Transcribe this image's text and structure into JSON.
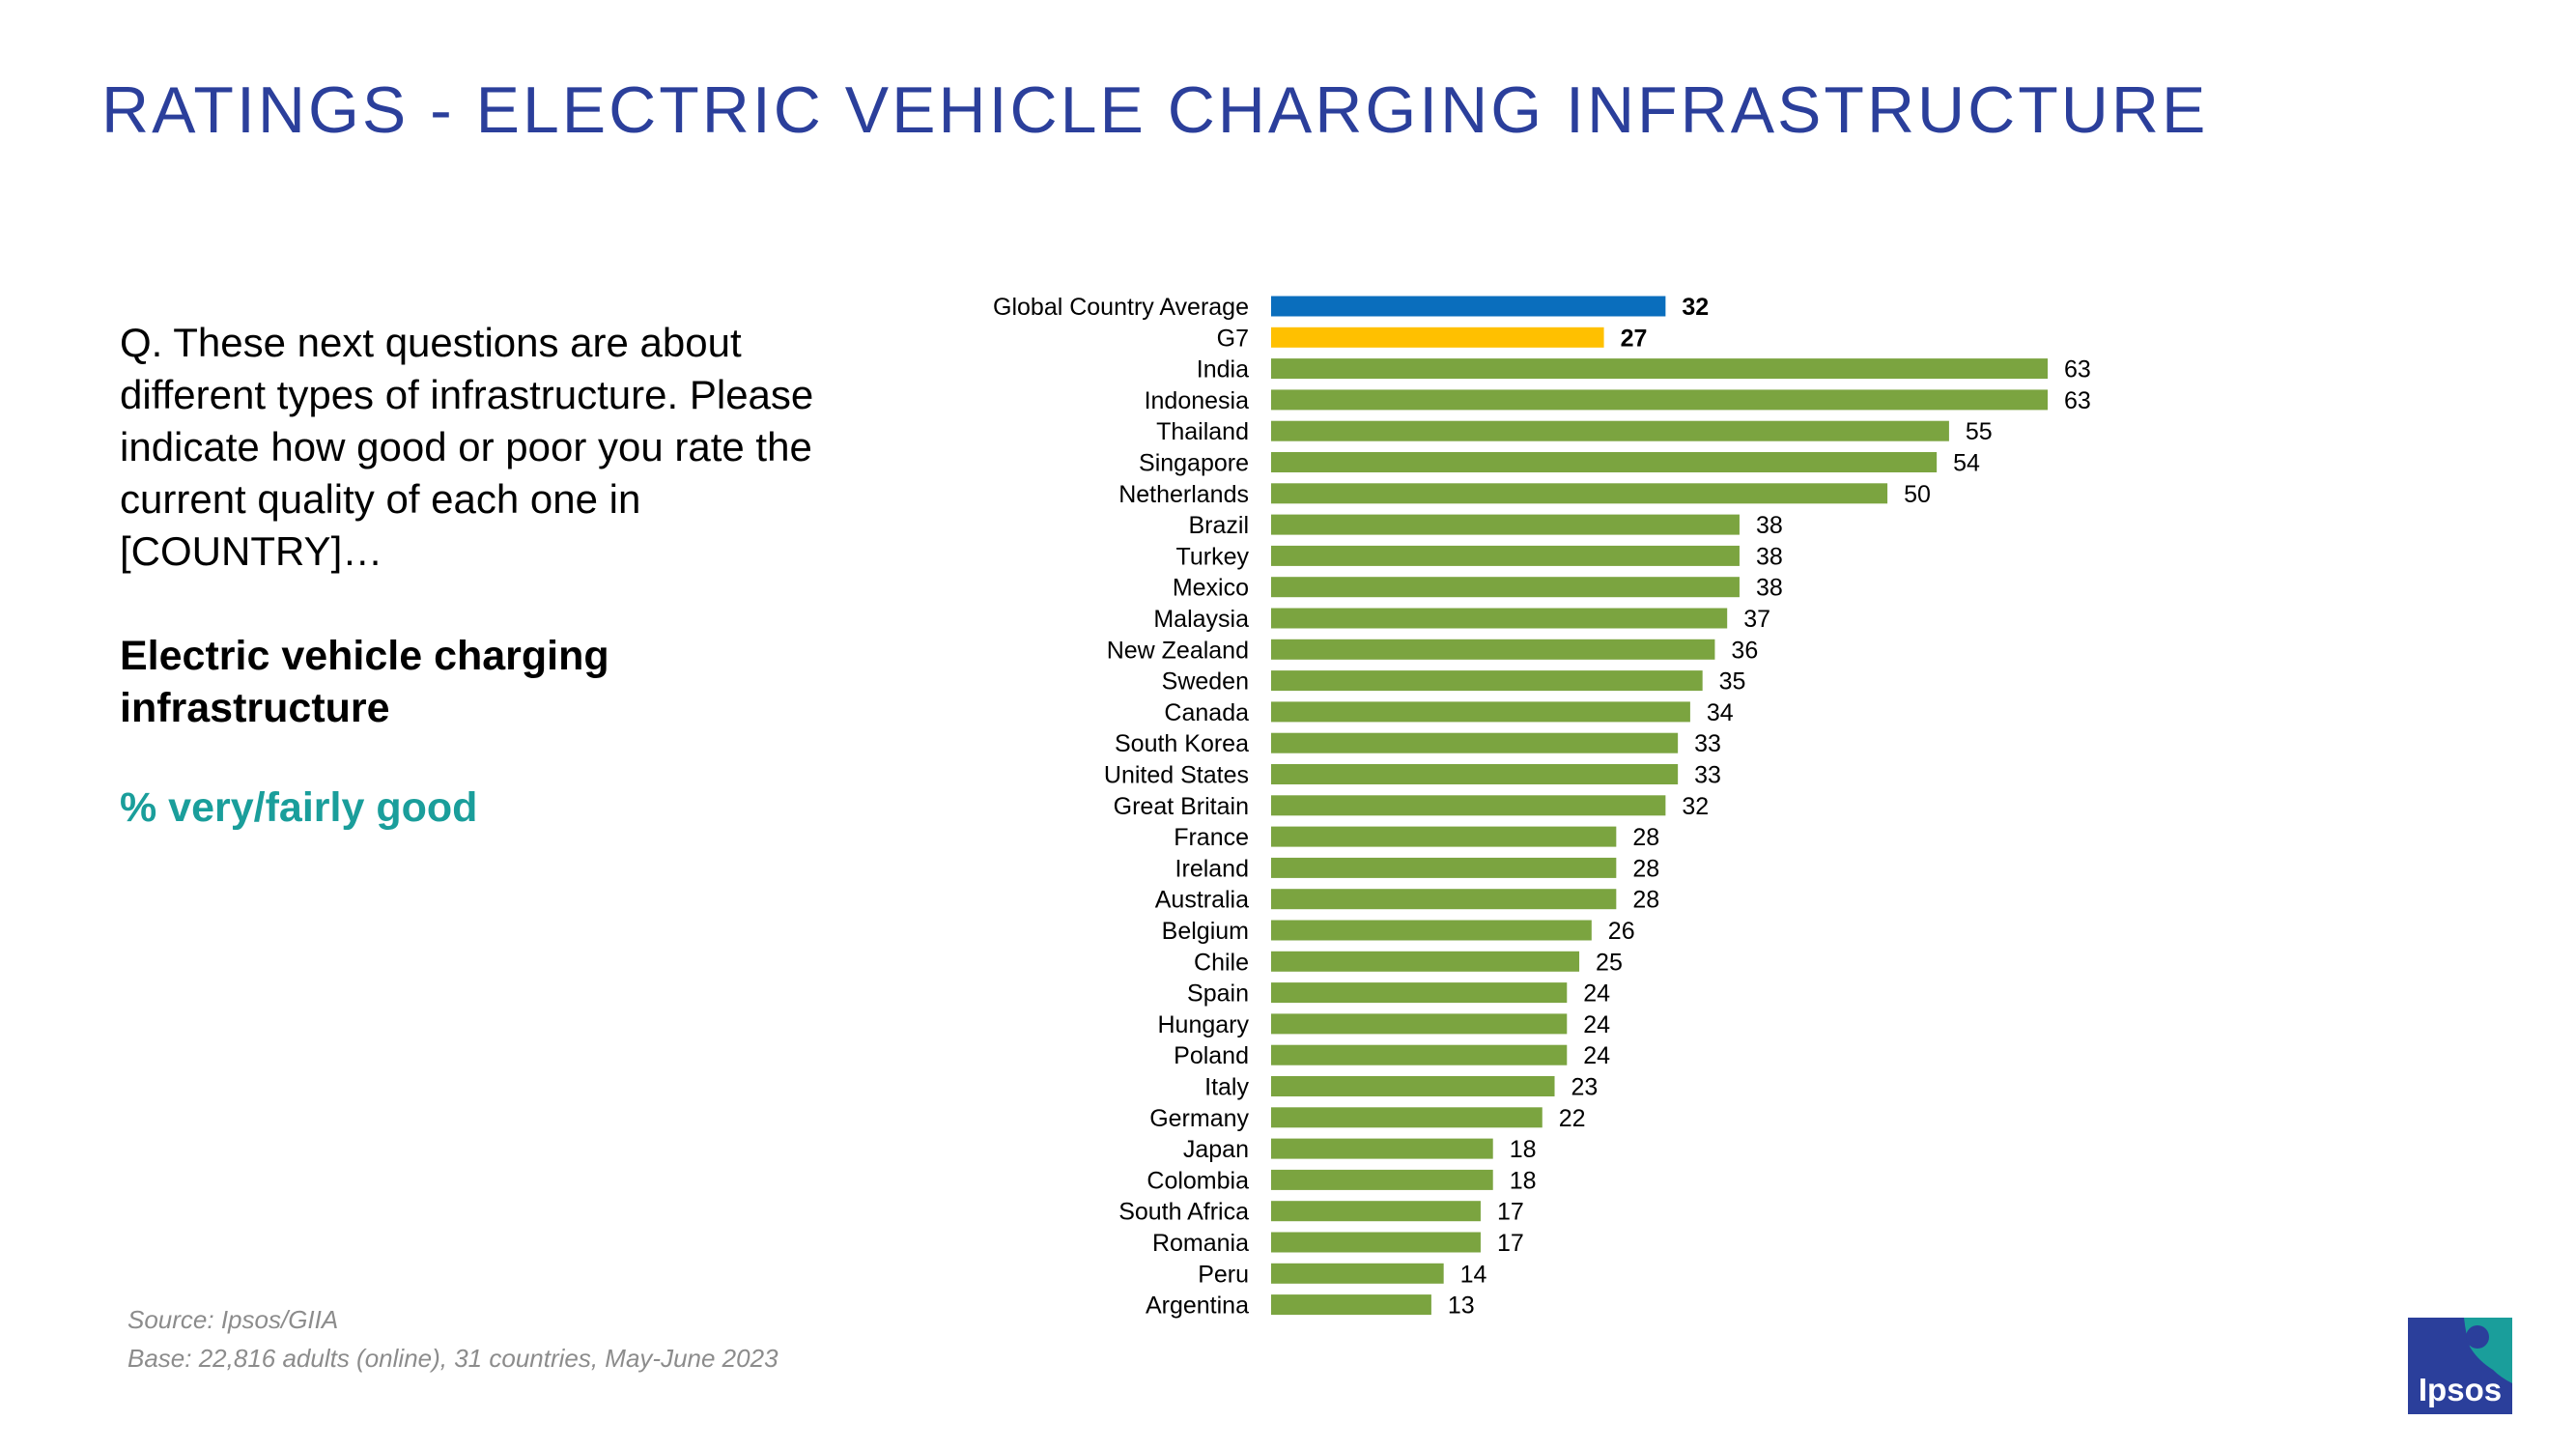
{
  "page": {
    "title": "RATINGS - ELECTRIC VEHICLE CHARGING INFRASTRUCTURE",
    "question": "Q. These next questions are about different types of infrastructure. Please indicate how good or poor you rate the current quality of each one in [COUNTRY]…",
    "subject": "Electric vehicle charging infrastructure",
    "metric": "% very/fairly good",
    "source": "Source: Ipsos/GIIA",
    "base": "Base: 22,816 adults (online), 31 countries, May-June 2023",
    "logo_text": "Ipsos"
  },
  "colors": {
    "title": "#2B3F9B",
    "metric": "#1A9E9B",
    "bar_default": "#7BA440",
    "bar_global": "#0A6EBD",
    "bar_g7": "#FFC000",
    "logo_bg": "#2B3F9B",
    "logo_accent": "#1A9E9B"
  },
  "chart_data": {
    "type": "bar",
    "orientation": "horizontal",
    "title": "",
    "xlabel": "",
    "ylabel": "",
    "xlim": [
      0,
      63
    ],
    "grid": false,
    "legend": "none",
    "categories": [
      "Global Country Average",
      "G7",
      "India",
      "Indonesia",
      "Thailand",
      "Singapore",
      "Netherlands",
      "Brazil",
      "Turkey",
      "Mexico",
      "Malaysia",
      "New Zealand",
      "Sweden",
      "Canada",
      "South Korea",
      "United States",
      "Great Britain",
      "France",
      "Ireland",
      "Australia",
      "Belgium",
      "Chile",
      "Spain",
      "Hungary",
      "Poland",
      "Italy",
      "Germany",
      "Japan",
      "Colombia",
      "South Africa",
      "Romania",
      "Peru",
      "Argentina"
    ],
    "values": [
      32,
      27,
      63,
      63,
      55,
      54,
      50,
      38,
      38,
      38,
      37,
      36,
      35,
      34,
      33,
      33,
      32,
      28,
      28,
      28,
      26,
      25,
      24,
      24,
      24,
      23,
      22,
      18,
      18,
      17,
      17,
      14,
      13
    ],
    "highlight": [
      "global",
      "g7",
      "",
      "",
      "",
      "",
      "",
      "",
      "",
      "",
      "",
      "",
      "",
      "",
      "",
      "",
      "",
      "",
      "",
      "",
      "",
      "",
      "",
      "",
      "",
      "",
      "",
      "",
      "",
      "",
      "",
      "",
      ""
    ]
  }
}
